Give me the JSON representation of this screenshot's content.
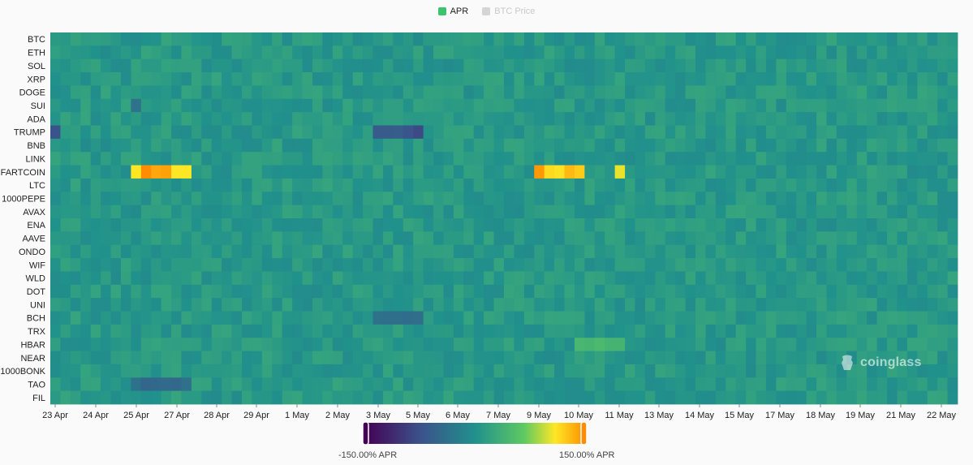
{
  "legend": {
    "apr_label": "APR",
    "apr_color": "#3ac46b",
    "btc_label": "BTC Price",
    "btc_color": "#d5d5d5"
  },
  "watermark": "coinglass",
  "colorscale": {
    "min_label": "-150.00% APR",
    "max_label": "150.00% APR",
    "min": -150,
    "max": 150,
    "stops": [
      "#440154",
      "#3b528b",
      "#21918c",
      "#5ec962",
      "#fde725",
      "#ff8c00"
    ]
  },
  "chart_data": {
    "type": "heatmap",
    "value_range": [
      -150,
      150
    ],
    "rows": [
      "BTC",
      "ETH",
      "SOL",
      "XRP",
      "DOGE",
      "SUI",
      "ADA",
      "TRUMP",
      "BNB",
      "LINK",
      "FARTCOIN",
      "LTC",
      "1000PEPE",
      "AVAX",
      "ENA",
      "AAVE",
      "ONDO",
      "WIF",
      "WLD",
      "DOT",
      "UNI",
      "BCH",
      "TRX",
      "HBAR",
      "NEAR",
      "1000BONK",
      "TAO",
      "FIL"
    ],
    "x_ticks": [
      "23 Apr",
      "24 Apr",
      "25 Apr",
      "27 Apr",
      "28 Apr",
      "29 Apr",
      "1 May",
      "2 May",
      "3 May",
      "5 May",
      "6 May",
      "7 May",
      "9 May",
      "10 May",
      "11 May",
      "13 May",
      "14 May",
      "15 May",
      "17 May",
      "18 May",
      "19 May",
      "21 May",
      "22 May"
    ],
    "baseline_value": 8,
    "highlights": [
      {
        "row": "FARTCOIN",
        "start": "25 Apr",
        "end": "27 Apr",
        "value": 130
      },
      {
        "row": "FARTCOIN",
        "start": "9 May",
        "end": "10 May",
        "value": 135
      },
      {
        "row": "FARTCOIN",
        "start": "11 May",
        "end": "11 May",
        "value": 115
      },
      {
        "row": "TRUMP",
        "start": "3 May",
        "end": "5 May",
        "value": -75
      },
      {
        "row": "TRUMP",
        "start": "12 May",
        "end": "12 May",
        "value": -90
      },
      {
        "row": "BCH",
        "start": "3 May",
        "end": "5 May",
        "value": -40
      },
      {
        "row": "TAO",
        "start": "25 Apr",
        "end": "27 Apr",
        "value": -45
      },
      {
        "row": "SUI",
        "start": "25 Apr",
        "end": "25 Apr",
        "value": -35
      },
      {
        "row": "HBAR",
        "start": "10 May",
        "end": "11 May",
        "value": 45
      }
    ]
  }
}
